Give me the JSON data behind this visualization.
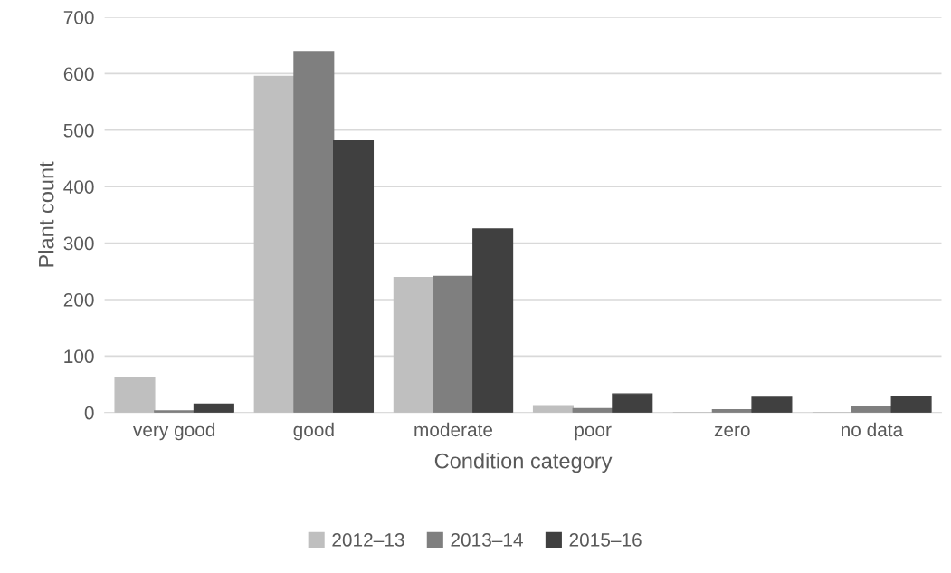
{
  "chart_data": {
    "type": "bar",
    "xlabel": "Condition category",
    "ylabel": "Plant count",
    "categories": [
      "very good",
      "good",
      "moderate",
      "poor",
      "zero",
      "no data"
    ],
    "series": [
      {
        "name": "2012–13",
        "color": "#bfbfbf",
        "values": [
          61,
          595,
          239,
          12,
          0,
          0
        ]
      },
      {
        "name": "2013–14",
        "color": "#7f7f7f",
        "values": [
          3,
          639,
          241,
          7,
          5,
          10
        ]
      },
      {
        "name": "2015–16",
        "color": "#404040",
        "values": [
          15,
          481,
          325,
          33,
          27,
          29
        ]
      }
    ],
    "ylim": [
      0,
      700
    ],
    "yticks": [
      0,
      100,
      200,
      300,
      400,
      500,
      600,
      700
    ],
    "grid": "y",
    "legend": "bottom"
  }
}
